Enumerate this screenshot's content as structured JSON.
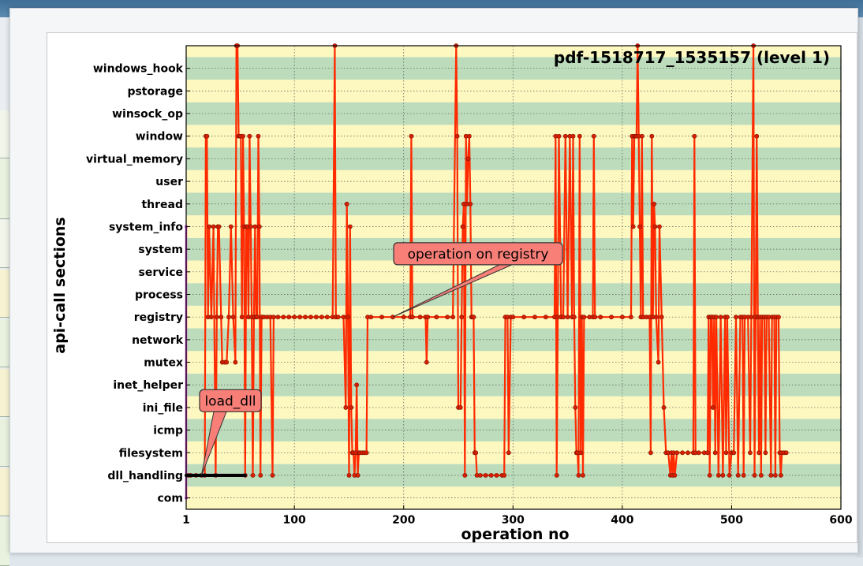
{
  "chart_data": {
    "type": "line",
    "title": "pdf-1518717_1535157 (level 1)",
    "xlabel": "operation no",
    "ylabel": "api-call sections",
    "xlim": [
      1,
      600
    ],
    "x_ticks": [
      1,
      100,
      200,
      300,
      400,
      500,
      600
    ],
    "categories": [
      "com",
      "dll_handling",
      "filesystem",
      "icmp",
      "ini_file",
      "inet_helper",
      "mutex",
      "network",
      "registry",
      "process",
      "service",
      "system",
      "system_info",
      "thread",
      "user",
      "virtual_memory",
      "window",
      "winsock_op",
      "pstorage",
      "windows_hook"
    ],
    "band_colors": [
      "#fdf8bf",
      "#bcdcbc"
    ],
    "series": [
      {
        "color": "#ff2a00",
        "points": [
          [
            3,
            1
          ],
          [
            5,
            1
          ],
          [
            10,
            1
          ],
          [
            15,
            1
          ],
          [
            18,
            1
          ],
          [
            19,
            16
          ],
          [
            20,
            16
          ],
          [
            21,
            8
          ],
          [
            22,
            12
          ],
          [
            24,
            8
          ],
          [
            26,
            12
          ],
          [
            28,
            1
          ],
          [
            29,
            8
          ],
          [
            30,
            12
          ],
          [
            31,
            12
          ],
          [
            33,
            8
          ],
          [
            34,
            6
          ],
          [
            36,
            6
          ],
          [
            38,
            6
          ],
          [
            40,
            8
          ],
          [
            42,
            12
          ],
          [
            44,
            8
          ],
          [
            46,
            6
          ],
          [
            47,
            20
          ],
          [
            48,
            20
          ],
          [
            49,
            16
          ],
          [
            50,
            16
          ],
          [
            51,
            16
          ],
          [
            52,
            8
          ],
          [
            53,
            16
          ],
          [
            54,
            12
          ],
          [
            55,
            1
          ],
          [
            56,
            12
          ],
          [
            57,
            12
          ],
          [
            58,
            8
          ],
          [
            59,
            16
          ],
          [
            60,
            12
          ],
          [
            61,
            8
          ],
          [
            62,
            1
          ],
          [
            63,
            8
          ],
          [
            64,
            12
          ],
          [
            65,
            8
          ],
          [
            66,
            8
          ],
          [
            67,
            16
          ],
          [
            68,
            12
          ],
          [
            69,
            1
          ],
          [
            70,
            8
          ],
          [
            72,
            8
          ],
          [
            75,
            8
          ],
          [
            78,
            8
          ],
          [
            80,
            1
          ],
          [
            81,
            8
          ],
          [
            85,
            8
          ],
          [
            90,
            8
          ],
          [
            95,
            8
          ],
          [
            100,
            8
          ],
          [
            105,
            8
          ],
          [
            110,
            8
          ],
          [
            115,
            8
          ],
          [
            120,
            8
          ],
          [
            125,
            8
          ],
          [
            130,
            8
          ],
          [
            135,
            8
          ],
          [
            137,
            20
          ],
          [
            138,
            8
          ],
          [
            140,
            8
          ],
          [
            145,
            8
          ],
          [
            147,
            4
          ],
          [
            148,
            13
          ],
          [
            149,
            8
          ],
          [
            150,
            1
          ],
          [
            151,
            12
          ],
          [
            152,
            4
          ],
          [
            153,
            2
          ],
          [
            154,
            2
          ],
          [
            155,
            1
          ],
          [
            156,
            2
          ],
          [
            157,
            5
          ],
          [
            158,
            1
          ],
          [
            159,
            2
          ],
          [
            160,
            2
          ],
          [
            162,
            2
          ],
          [
            164,
            2
          ],
          [
            166,
            2
          ],
          [
            167,
            8
          ],
          [
            170,
            8
          ],
          [
            180,
            8
          ],
          [
            190,
            8
          ],
          [
            200,
            8
          ],
          [
            206,
            8
          ],
          [
            207,
            16
          ],
          [
            208,
            8
          ],
          [
            215,
            8
          ],
          [
            220,
            8
          ],
          [
            221,
            6
          ],
          [
            222,
            8
          ],
          [
            230,
            8
          ],
          [
            240,
            8
          ],
          [
            245,
            8
          ],
          [
            248,
            20
          ],
          [
            249,
            16
          ],
          [
            250,
            4
          ],
          [
            252,
            4
          ],
          [
            253,
            8
          ],
          [
            254,
            12
          ],
          [
            255,
            13
          ],
          [
            256,
            1
          ],
          [
            257,
            16
          ],
          [
            258,
            13
          ],
          [
            259,
            15
          ],
          [
            260,
            16
          ],
          [
            261,
            13
          ],
          [
            262,
            8
          ],
          [
            263,
            8
          ],
          [
            264,
            8
          ],
          [
            265,
            2
          ],
          [
            266,
            2
          ],
          [
            267,
            1
          ],
          [
            270,
            1
          ],
          [
            275,
            1
          ],
          [
            280,
            1
          ],
          [
            285,
            1
          ],
          [
            290,
            1
          ],
          [
            292,
            1
          ],
          [
            293,
            8
          ],
          [
            295,
            8
          ],
          [
            296,
            2
          ],
          [
            298,
            8
          ],
          [
            300,
            8
          ],
          [
            310,
            8
          ],
          [
            320,
            8
          ],
          [
            330,
            8
          ],
          [
            338,
            8
          ],
          [
            339,
            16
          ],
          [
            340,
            1
          ],
          [
            341,
            8
          ],
          [
            342,
            16
          ],
          [
            344,
            8
          ],
          [
            346,
            8
          ],
          [
            348,
            16
          ],
          [
            350,
            8
          ],
          [
            352,
            16
          ],
          [
            354,
            8
          ],
          [
            355,
            16
          ],
          [
            356,
            8
          ],
          [
            357,
            4
          ],
          [
            358,
            2
          ],
          [
            359,
            2
          ],
          [
            360,
            1
          ],
          [
            361,
            16
          ],
          [
            362,
            2
          ],
          [
            363,
            8
          ],
          [
            364,
            1
          ],
          [
            365,
            8
          ],
          [
            370,
            8
          ],
          [
            373,
            8
          ],
          [
            374,
            16
          ],
          [
            375,
            8
          ],
          [
            380,
            8
          ],
          [
            390,
            8
          ],
          [
            400,
            8
          ],
          [
            408,
            8
          ],
          [
            409,
            16
          ],
          [
            410,
            12
          ],
          [
            411,
            16
          ],
          [
            412,
            16
          ],
          [
            413,
            16
          ],
          [
            414,
            20
          ],
          [
            415,
            16
          ],
          [
            416,
            12
          ],
          [
            417,
            8
          ],
          [
            418,
            16
          ],
          [
            419,
            8
          ],
          [
            422,
            8
          ],
          [
            425,
            8
          ],
          [
            426,
            2
          ],
          [
            427,
            16
          ],
          [
            428,
            8
          ],
          [
            429,
            13
          ],
          [
            430,
            12
          ],
          [
            431,
            8
          ],
          [
            433,
            6
          ],
          [
            434,
            12
          ],
          [
            436,
            8
          ],
          [
            438,
            4
          ],
          [
            440,
            2
          ],
          [
            442,
            2
          ],
          [
            444,
            1
          ],
          [
            445,
            2
          ],
          [
            446,
            1
          ],
          [
            447,
            2
          ],
          [
            448,
            1
          ],
          [
            450,
            2
          ],
          [
            455,
            2
          ],
          [
            460,
            2
          ],
          [
            465,
            2
          ],
          [
            466,
            16
          ],
          [
            467,
            2
          ],
          [
            470,
            2
          ],
          [
            475,
            2
          ],
          [
            478,
            2
          ],
          [
            479,
            8
          ],
          [
            480,
            1
          ],
          [
            481,
            8
          ],
          [
            482,
            8
          ],
          [
            483,
            4
          ],
          [
            484,
            8
          ],
          [
            485,
            2
          ],
          [
            486,
            8
          ],
          [
            488,
            1
          ],
          [
            490,
            8
          ],
          [
            492,
            1
          ],
          [
            494,
            8
          ],
          [
            495,
            2
          ],
          [
            496,
            8
          ],
          [
            498,
            1
          ],
          [
            500,
            2
          ],
          [
            502,
            2
          ],
          [
            504,
            8
          ],
          [
            506,
            1
          ],
          [
            508,
            8
          ],
          [
            510,
            8
          ],
          [
            511,
            1
          ],
          [
            512,
            8
          ],
          [
            515,
            8
          ],
          [
            517,
            2
          ],
          [
            518,
            8
          ],
          [
            520,
            20
          ],
          [
            521,
            1
          ],
          [
            522,
            8
          ],
          [
            523,
            16
          ],
          [
            524,
            8
          ],
          [
            525,
            2
          ],
          [
            526,
            8
          ],
          [
            527,
            1
          ],
          [
            528,
            8
          ],
          [
            530,
            8
          ],
          [
            531,
            2
          ],
          [
            532,
            8
          ],
          [
            534,
            8
          ],
          [
            536,
            1
          ],
          [
            537,
            8
          ],
          [
            539,
            8
          ],
          [
            540,
            1
          ],
          [
            541,
            8
          ],
          [
            543,
            8
          ],
          [
            544,
            2
          ],
          [
            545,
            1
          ],
          [
            546,
            2
          ],
          [
            548,
            2
          ],
          [
            550,
            2
          ]
        ]
      },
      {
        "color": "#cc44cc",
        "points": [
          [
            1,
            0
          ],
          [
            1,
            12
          ]
        ]
      },
      {
        "color": "#000000",
        "points": [
          [
            1,
            1
          ],
          [
            55,
            1
          ]
        ]
      }
    ],
    "annotations": [
      {
        "text": "load_dll",
        "target": [
          15,
          1
        ]
      },
      {
        "text": "operation on registry",
        "target": [
          190,
          8
        ]
      }
    ],
    "grid": true
  }
}
